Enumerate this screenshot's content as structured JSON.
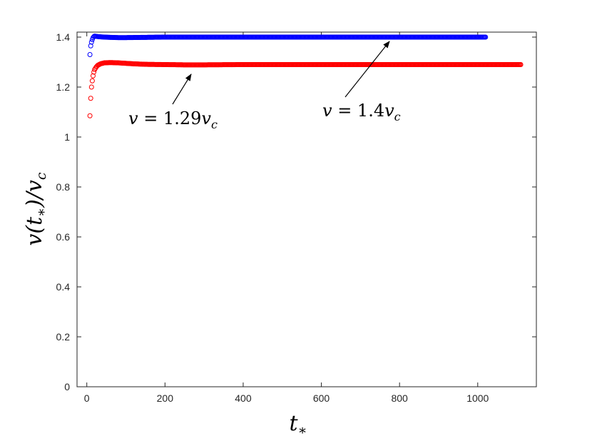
{
  "chart_data": {
    "type": "scatter",
    "xlim": [
      -25,
      1150
    ],
    "ylim": [
      0,
      1.42
    ],
    "xticks": [
      0,
      200,
      400,
      600,
      800,
      1000
    ],
    "yticks": [
      0,
      0.2,
      0.4,
      0.6,
      0.8,
      1,
      1.2,
      1.4
    ],
    "xtick_labels": [
      "0",
      "200",
      "400",
      "600",
      "800",
      "1000"
    ],
    "ytick_labels": [
      "0",
      "0.2",
      "0.4",
      "0.6",
      "0.8",
      "1",
      "1.2",
      "1.4"
    ],
    "xlabel": {
      "base": "t",
      "sub": "∗"
    },
    "ylabel": {
      "pre": "v(t",
      "sub1": "∗",
      "mid": ")/v",
      "sub2": "c"
    },
    "grid": false,
    "marker": "open-circle",
    "series": [
      {
        "color": "#0000ff",
        "x": [
          8,
          10,
          12,
          14,
          16,
          18,
          20,
          24,
          28,
          35,
          45,
          60,
          80,
          100,
          150,
          200,
          300,
          400,
          500,
          600,
          700,
          800,
          900,
          1000,
          1020
        ],
        "y": [
          1.33,
          1.365,
          1.38,
          1.39,
          1.398,
          1.402,
          1.404,
          1.403,
          1.402,
          1.401,
          1.4,
          1.399,
          1.398,
          1.398,
          1.399,
          1.4,
          1.4,
          1.4,
          1.4,
          1.4,
          1.4,
          1.4,
          1.4,
          1.4,
          1.4
        ]
      },
      {
        "color": "#ff0000",
        "x": [
          8,
          10,
          12,
          14,
          16,
          18,
          20,
          24,
          28,
          35,
          45,
          60,
          80,
          100,
          120,
          150,
          200,
          250,
          300,
          400,
          500,
          600,
          700,
          800,
          900,
          1000,
          1110
        ],
        "y": [
          1.085,
          1.155,
          1.2,
          1.225,
          1.245,
          1.26,
          1.27,
          1.28,
          1.287,
          1.293,
          1.297,
          1.298,
          1.297,
          1.295,
          1.293,
          1.291,
          1.29,
          1.289,
          1.289,
          1.29,
          1.29,
          1.29,
          1.29,
          1.29,
          1.29,
          1.29,
          1.29
        ]
      }
    ],
    "annotations": [
      {
        "text_var": "v",
        "text_eq": " = 1.29",
        "text_sub_var": "v",
        "text_sub": "c",
        "arrow_to": [
          260,
          1.29
        ]
      },
      {
        "text_var": "v",
        "text_eq": " = 1.4",
        "text_sub_var": "v",
        "text_sub": "c",
        "arrow_to": [
          775,
          1.4
        ]
      }
    ]
  }
}
